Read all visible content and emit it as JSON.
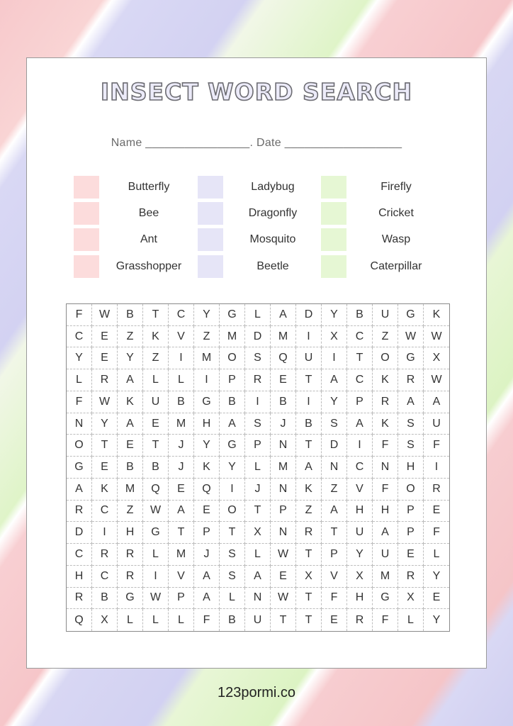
{
  "title": "INSECT WORD SEARCH",
  "name_date_line": "Name ________________. Date __________________",
  "colors": {
    "pink": "#fcdcdc",
    "lavender": "#e6e5f7",
    "green": "#e6f7d4"
  },
  "word_columns": [
    {
      "color": "pink",
      "words": [
        "Butterfly",
        "Bee",
        "Ant",
        "Grasshopper"
      ]
    },
    {
      "color": "lavender",
      "words": [
        "Ladybug",
        "Dragonfly",
        "Mosquito",
        "Beetle"
      ]
    },
    {
      "color": "green",
      "words": [
        "Firefly",
        "Cricket",
        "Wasp",
        "Caterpillar"
      ]
    }
  ],
  "grid": [
    "FWBTCYGLADYBUGK",
    "CEZKVZMDMIXCZWW",
    "YEYZIMOSQUITOGX",
    "LRALLIPRETACKRW",
    "FWKUBGBIBIYPRAA",
    "NYAEMHASJBSAKSU",
    "OTETJYGPNTDIFSF",
    "GEBBJKYLMANCNHI",
    "AKMQEQIJNKZVFOR",
    "RCZWAEOTPZAHHPE",
    "DIHGTPTXNRTUAPF",
    "CRRLMJSLWTPYUEL",
    "HCRIVASAEXVXMRY",
    "RBGWPALNWTFHGXE",
    "QXLLLFBUTTERFLY"
  ],
  "footer": "123pormi.co"
}
